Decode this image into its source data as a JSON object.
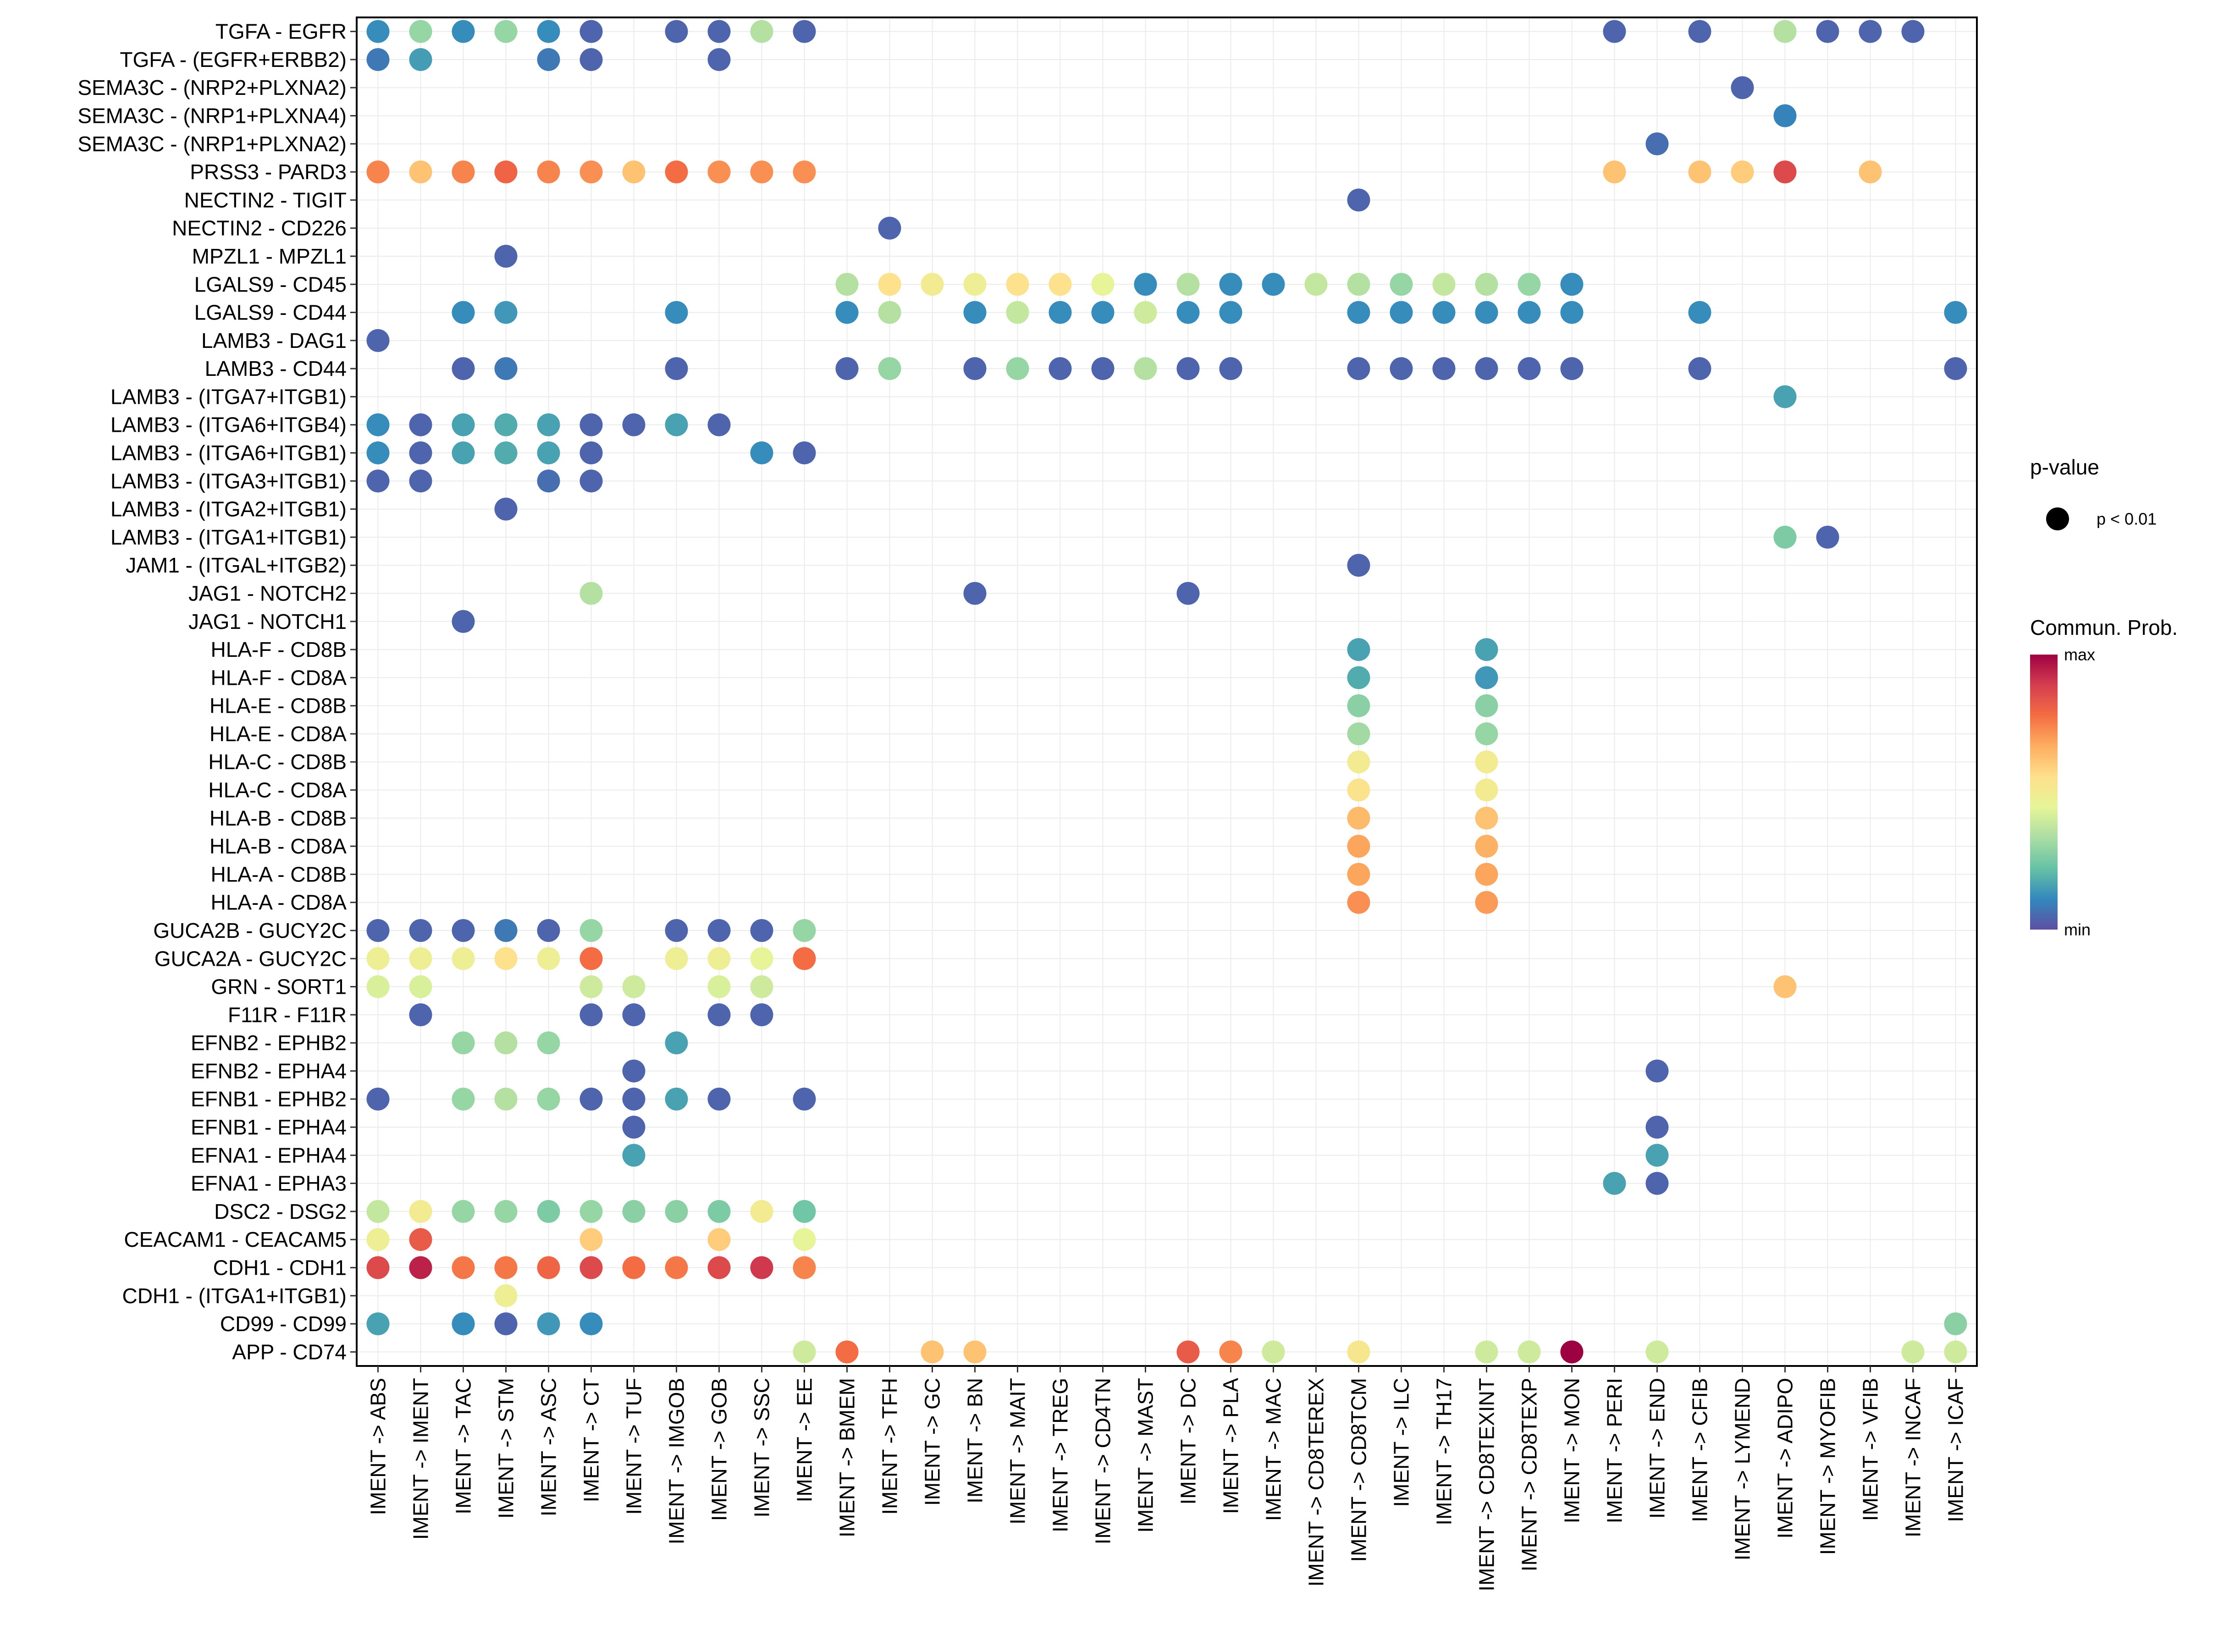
{
  "chart_data": {
    "type": "scatter",
    "subtype": "bubble-dot-plot",
    "title": "",
    "xlabel": "",
    "ylabel": "",
    "grid": true,
    "legend_placement": "right",
    "x_categories": [
      "IMENT -> ABS",
      "IMENT -> IMENT",
      "IMENT -> TAC",
      "IMENT -> STM",
      "IMENT -> ASC",
      "IMENT -> CT",
      "IMENT -> TUF",
      "IMENT -> IMGOB",
      "IMENT -> GOB",
      "IMENT -> SSC",
      "IMENT -> EE",
      "IMENT -> BMEM",
      "IMENT -> TFH",
      "IMENT -> GC",
      "IMENT -> BN",
      "IMENT -> MAIT",
      "IMENT -> TREG",
      "IMENT -> CD4TN",
      "IMENT -> MAST",
      "IMENT -> DC",
      "IMENT -> PLA",
      "IMENT -> MAC",
      "IMENT -> CD8TEREX",
      "IMENT -> CD8TCM",
      "IMENT -> ILC",
      "IMENT -> TH17",
      "IMENT -> CD8TEXINT",
      "IMENT -> CD8TEXP",
      "IMENT -> MON",
      "IMENT -> PERI",
      "IMENT -> END",
      "IMENT -> CFIB",
      "IMENT -> LYMEND",
      "IMENT -> ADIPO",
      "IMENT -> MYOFIB",
      "IMENT -> VFIB",
      "IMENT -> INCAF",
      "IMENT -> ICAF"
    ],
    "y_categories": [
      "TGFA - EGFR",
      "TGFA - (EGFR+ERBB2)",
      "SEMA3C - (NRP2+PLXNA2)",
      "SEMA3C - (NRP1+PLXNA4)",
      "SEMA3C - (NRP1+PLXNA2)",
      "PRSS3 - PARD3",
      "NECTIN2 - TIGIT",
      "NECTIN2 - CD226",
      "MPZL1 - MPZL1",
      "LGALS9 - CD45",
      "LGALS9 - CD44",
      "LAMB3 - DAG1",
      "LAMB3 - CD44",
      "LAMB3 - (ITGA7+ITGB1)",
      "LAMB3 - (ITGA6+ITGB4)",
      "LAMB3 - (ITGA6+ITGB1)",
      "LAMB3 - (ITGA3+ITGB1)",
      "LAMB3 - (ITGA2+ITGB1)",
      "LAMB3 - (ITGA1+ITGB1)",
      "JAM1 - (ITGAL+ITGB2)",
      "JAG1 - NOTCH2",
      "JAG1 - NOTCH1",
      "HLA-F - CD8B",
      "HLA-F - CD8A",
      "HLA-E - CD8B",
      "HLA-E - CD8A",
      "HLA-C - CD8B",
      "HLA-C - CD8A",
      "HLA-B - CD8B",
      "HLA-B - CD8A",
      "HLA-A - CD8B",
      "HLA-A - CD8A",
      "GUCA2B - GUCY2C",
      "GUCA2A - GUCY2C",
      "GRN - SORT1",
      "F11R - F11R",
      "EFNB2 - EPHB2",
      "EFNB2 - EPHA4",
      "EFNB1 - EPHB2",
      "EFNB1 - EPHA4",
      "EFNA1 - EPHA4",
      "EFNA1 - EPHA3",
      "DSC2 - DSG2",
      "CEACAM1 - CEACAM5",
      "CDH1 - CDH1",
      "CDH1 - (ITGA1+ITGB1)",
      "CD99 - CD99",
      "APP - CD74"
    ],
    "value_scale": "relative communication probability, 0 = min, 1 = max",
    "rows": {
      "TGFA - EGFR": {
        "IMENT -> ABS": 0.12,
        "IMENT -> IMENT": 0.3,
        "IMENT -> TAC": 0.12,
        "IMENT -> STM": 0.3,
        "IMENT -> ASC": 0.12,
        "IMENT -> CT": 0.04,
        "IMENT -> IMGOB": 0.04,
        "IMENT -> GOB": 0.04,
        "IMENT -> SSC": 0.35,
        "IMENT -> EE": 0.04,
        "IMENT -> PERI": 0.04,
        "IMENT -> CFIB": 0.04,
        "IMENT -> ADIPO": 0.35,
        "IMENT -> MYOFIB": 0.04,
        "IMENT -> VFIB": 0.04,
        "IMENT -> INCAF": 0.04
      },
      "TGFA - (EGFR+ERBB2)": {
        "IMENT -> ABS": 0.08,
        "IMENT -> IMENT": 0.15,
        "IMENT -> ASC": 0.08,
        "IMENT -> CT": 0.04,
        "IMENT -> GOB": 0.04
      },
      "SEMA3C - (NRP2+PLXNA2)": {
        "IMENT -> LYMEND": 0.04
      },
      "SEMA3C - (NRP1+PLXNA4)": {
        "IMENT -> ADIPO": 0.1
      },
      "SEMA3C - (NRP1+PLXNA2)": {
        "IMENT -> END": 0.06
      },
      "PRSS3 - PARD3": {
        "IMENT -> ABS": 0.74,
        "IMENT -> IMENT": 0.62,
        "IMENT -> TAC": 0.74,
        "IMENT -> STM": 0.8,
        "IMENT -> ASC": 0.74,
        "IMENT -> CT": 0.72,
        "IMENT -> TUF": 0.62,
        "IMENT -> IMGOB": 0.78,
        "IMENT -> GOB": 0.72,
        "IMENT -> SSC": 0.72,
        "IMENT -> EE": 0.72,
        "IMENT -> PERI": 0.62,
        "IMENT -> CFIB": 0.62,
        "IMENT -> LYMEND": 0.6,
        "IMENT -> ADIPO": 0.86,
        "IMENT -> VFIB": 0.62
      },
      "NECTIN2 - TIGIT": {
        "IMENT -> CD8TCM": 0.04
      },
      "NECTIN2 - CD226": {
        "IMENT -> TFH": 0.04
      },
      "MPZL1 - MPZL1": {
        "IMENT -> STM": 0.04
      },
      "LGALS9 - CD45": {
        "IMENT -> BMEM": 0.35,
        "IMENT -> TFH": 0.55,
        "IMENT -> GC": 0.5,
        "IMENT -> BN": 0.48,
        "IMENT -> MAIT": 0.55,
        "IMENT -> TREG": 0.55,
        "IMENT -> CD4TN": 0.45,
        "IMENT -> MAST": 0.12,
        "IMENT -> DC": 0.35,
        "IMENT -> PLA": 0.12,
        "IMENT -> MAC": 0.12,
        "IMENT -> CD8TEREX": 0.38,
        "IMENT -> CD8TCM": 0.35,
        "IMENT -> ILC": 0.3,
        "IMENT -> TH17": 0.38,
        "IMENT -> CD8TEXINT": 0.35,
        "IMENT -> CD8TEXP": 0.3,
        "IMENT -> MON": 0.12
      },
      "LGALS9 - CD44": {
        "IMENT -> TAC": 0.12,
        "IMENT -> STM": 0.14,
        "IMENT -> IMGOB": 0.12,
        "IMENT -> BMEM": 0.12,
        "IMENT -> TFH": 0.35,
        "IMENT -> BN": 0.12,
        "IMENT -> MAIT": 0.38,
        "IMENT -> TREG": 0.12,
        "IMENT -> CD4TN": 0.12,
        "IMENT -> MAST": 0.4,
        "IMENT -> DC": 0.12,
        "IMENT -> PLA": 0.12,
        "IMENT -> CD8TCM": 0.12,
        "IMENT -> ILC": 0.12,
        "IMENT -> TH17": 0.12,
        "IMENT -> CD8TEXINT": 0.12,
        "IMENT -> CD8TEXP": 0.12,
        "IMENT -> MON": 0.12,
        "IMENT -> CFIB": 0.12,
        "IMENT -> ICAF": 0.12
      },
      "LAMB3 - DAG1": {
        "IMENT -> ABS": 0.04
      },
      "LAMB3 - CD44": {
        "IMENT -> TAC": 0.04,
        "IMENT -> STM": 0.08,
        "IMENT -> IMGOB": 0.04,
        "IMENT -> BMEM": 0.04,
        "IMENT -> TFH": 0.3,
        "IMENT -> BN": 0.04,
        "IMENT -> MAIT": 0.3,
        "IMENT -> TREG": 0.04,
        "IMENT -> CD4TN": 0.04,
        "IMENT -> MAST": 0.35,
        "IMENT -> DC": 0.04,
        "IMENT -> PLA": 0.04,
        "IMENT -> CD8TCM": 0.04,
        "IMENT -> ILC": 0.04,
        "IMENT -> TH17": 0.04,
        "IMENT -> CD8TEXINT": 0.04,
        "IMENT -> CD8TEXP": 0.04,
        "IMENT -> MON": 0.04,
        "IMENT -> CFIB": 0.04,
        "IMENT -> ICAF": 0.04
      },
      "LAMB3 - (ITGA7+ITGB1)": {
        "IMENT -> ADIPO": 0.16
      },
      "LAMB3 - (ITGA6+ITGB4)": {
        "IMENT -> ABS": 0.12,
        "IMENT -> IMENT": 0.04,
        "IMENT -> TAC": 0.16,
        "IMENT -> STM": 0.18,
        "IMENT -> ASC": 0.16,
        "IMENT -> CT": 0.04,
        "IMENT -> TUF": 0.04,
        "IMENT -> IMGOB": 0.16,
        "IMENT -> GOB": 0.04
      },
      "LAMB3 - (ITGA6+ITGB1)": {
        "IMENT -> ABS": 0.12,
        "IMENT -> IMENT": 0.04,
        "IMENT -> TAC": 0.16,
        "IMENT -> STM": 0.18,
        "IMENT -> ASC": 0.16,
        "IMENT -> CT": 0.04,
        "IMENT -> SSC": 0.12,
        "IMENT -> EE": 0.04
      },
      "LAMB3 - (ITGA3+ITGB1)": {
        "IMENT -> ABS": 0.04,
        "IMENT -> IMENT": 0.04,
        "IMENT -> ASC": 0.06,
        "IMENT -> CT": 0.04
      },
      "LAMB3 - (ITGA2+ITGB1)": {
        "IMENT -> STM": 0.04
      },
      "LAMB3 - (ITGA1+ITGB1)": {
        "IMENT -> ADIPO": 0.26,
        "IMENT -> MYOFIB": 0.04
      },
      "JAM1 - (ITGAL+ITGB2)": {
        "IMENT -> CD8TCM": 0.04
      },
      "JAG1 - NOTCH2": {
        "IMENT -> CT": 0.35,
        "IMENT -> BN": 0.04,
        "IMENT -> DC": 0.04
      },
      "JAG1 - NOTCH1": {
        "IMENT -> TAC": 0.04
      },
      "HLA-F - CD8B": {
        "IMENT -> CD8TCM": 0.16,
        "IMENT -> CD8TEXINT": 0.16
      },
      "HLA-F - CD8A": {
        "IMENT -> CD8TCM": 0.18,
        "IMENT -> CD8TEXINT": 0.14
      },
      "HLA-E - CD8B": {
        "IMENT -> CD8TCM": 0.28,
        "IMENT -> CD8TEXINT": 0.28
      },
      "HLA-E - CD8A": {
        "IMENT -> CD8TCM": 0.32,
        "IMENT -> CD8TEXINT": 0.3
      },
      "HLA-C - CD8B": {
        "IMENT -> CD8TCM": 0.5,
        "IMENT -> CD8TEXINT": 0.5
      },
      "HLA-C - CD8A": {
        "IMENT -> CD8TCM": 0.54,
        "IMENT -> CD8TEXINT": 0.5
      },
      "HLA-B - CD8B": {
        "IMENT -> CD8TCM": 0.64,
        "IMENT -> CD8TEXINT": 0.62
      },
      "HLA-B - CD8A": {
        "IMENT -> CD8TCM": 0.68,
        "IMENT -> CD8TEXINT": 0.66
      },
      "HLA-A - CD8B": {
        "IMENT -> CD8TCM": 0.68,
        "IMENT -> CD8TEXINT": 0.68
      },
      "HLA-A - CD8A": {
        "IMENT -> CD8TCM": 0.72,
        "IMENT -> CD8TEXINT": 0.7
      },
      "GUCA2B - GUCY2C": {
        "IMENT -> ABS": 0.04,
        "IMENT -> IMENT": 0.04,
        "IMENT -> TAC": 0.04,
        "IMENT -> STM": 0.08,
        "IMENT -> ASC": 0.04,
        "IMENT -> CT": 0.3,
        "IMENT -> IMGOB": 0.04,
        "IMENT -> GOB": 0.04,
        "IMENT -> SSC": 0.04,
        "IMENT -> EE": 0.3
      },
      "GUCA2A - GUCY2C": {
        "IMENT -> ABS": 0.48,
        "IMENT -> IMENT": 0.48,
        "IMENT -> TAC": 0.48,
        "IMENT -> STM": 0.55,
        "IMENT -> ASC": 0.48,
        "IMENT -> CT": 0.78,
        "IMENT -> IMGOB": 0.48,
        "IMENT -> GOB": 0.48,
        "IMENT -> SSC": 0.45,
        "IMENT -> EE": 0.78
      },
      "GRN - SORT1": {
        "IMENT -> ABS": 0.42,
        "IMENT -> IMENT": 0.42,
        "IMENT -> CT": 0.4,
        "IMENT -> TUF": 0.4,
        "IMENT -> GOB": 0.42,
        "IMENT -> SSC": 0.4,
        "IMENT -> ADIPO": 0.62
      },
      "F11R - F11R": {
        "IMENT -> IMENT": 0.04,
        "IMENT -> CT": 0.04,
        "IMENT -> TUF": 0.04,
        "IMENT -> GOB": 0.04,
        "IMENT -> SSC": 0.04
      },
      "EFNB2 - EPHB2": {
        "IMENT -> TAC": 0.3,
        "IMENT -> STM": 0.35,
        "IMENT -> ASC": 0.3,
        "IMENT -> IMGOB": 0.16
      },
      "EFNB2 - EPHA4": {
        "IMENT -> TUF": 0.04,
        "IMENT -> END": 0.04
      },
      "EFNB1 - EPHB2": {
        "IMENT -> ABS": 0.04,
        "IMENT -> TAC": 0.3,
        "IMENT -> STM": 0.35,
        "IMENT -> ASC": 0.3,
        "IMENT -> CT": 0.04,
        "IMENT -> TUF": 0.04,
        "IMENT -> IMGOB": 0.16,
        "IMENT -> GOB": 0.04,
        "IMENT -> EE": 0.04
      },
      "EFNB1 - EPHA4": {
        "IMENT -> TUF": 0.04,
        "IMENT -> END": 0.04
      },
      "EFNA1 - EPHA4": {
        "IMENT -> TUF": 0.16,
        "IMENT -> END": 0.16
      },
      "EFNA1 - EPHA3": {
        "IMENT -> PERI": 0.16,
        "IMENT -> END": 0.04
      },
      "DSC2 - DSG2": {
        "IMENT -> ABS": 0.38,
        "IMENT -> IMENT": 0.5,
        "IMENT -> TAC": 0.3,
        "IMENT -> STM": 0.3,
        "IMENT -> ASC": 0.26,
        "IMENT -> CT": 0.3,
        "IMENT -> TUF": 0.28,
        "IMENT -> IMGOB": 0.28,
        "IMENT -> GOB": 0.26,
        "IMENT -> SSC": 0.5,
        "IMENT -> EE": 0.24
      },
      "CEACAM1 - CEACAM5": {
        "IMENT -> ABS": 0.48,
        "IMENT -> IMENT": 0.82,
        "IMENT -> CT": 0.6,
        "IMENT -> GOB": 0.6,
        "IMENT -> EE": 0.45
      },
      "CDH1 - CDH1": {
        "IMENT -> ABS": 0.86,
        "IMENT -> IMENT": 0.94,
        "IMENT -> TAC": 0.76,
        "IMENT -> STM": 0.76,
        "IMENT -> ASC": 0.8,
        "IMENT -> CT": 0.86,
        "IMENT -> TUF": 0.78,
        "IMENT -> IMGOB": 0.76,
        "IMENT -> GOB": 0.86,
        "IMENT -> SSC": 0.9,
        "IMENT -> EE": 0.74
      },
      "CDH1 - (ITGA1+ITGB1)": {
        "IMENT -> STM": 0.48
      },
      "CD99 - CD99": {
        "IMENT -> ABS": 0.16,
        "IMENT -> TAC": 0.12,
        "IMENT -> STM": 0.04,
        "IMENT -> ASC": 0.14,
        "IMENT -> CT": 0.12,
        "IMENT -> ICAF": 0.28
      },
      "APP - CD74": {
        "IMENT -> EE": 0.4,
        "IMENT -> BMEM": 0.78,
        "IMENT -> GC": 0.62,
        "IMENT -> BN": 0.62,
        "IMENT -> DC": 0.82,
        "IMENT -> PLA": 0.74,
        "IMENT -> MAC": 0.4,
        "IMENT -> CD8TCM": 0.52,
        "IMENT -> CD8TEXINT": 0.4,
        "IMENT -> CD8TEXP": 0.4,
        "IMENT -> MON": 1.0,
        "IMENT -> END": 0.4,
        "IMENT -> INCAF": 0.4,
        "IMENT -> ICAF": 0.4
      }
    },
    "colorscale": [
      "#5E4FA2",
      "#3288BD",
      "#66C2A5",
      "#ABDDA4",
      "#E6F598",
      "#FEE08B",
      "#FDAE61",
      "#F46D43",
      "#D53E4F",
      "#9E0142"
    ],
    "legend": {
      "size_title": "p-value",
      "size_entries": [
        "p < 0.01"
      ],
      "color_title": "Commun. Prob.",
      "color_max_label": "max",
      "color_min_label": "min"
    }
  }
}
